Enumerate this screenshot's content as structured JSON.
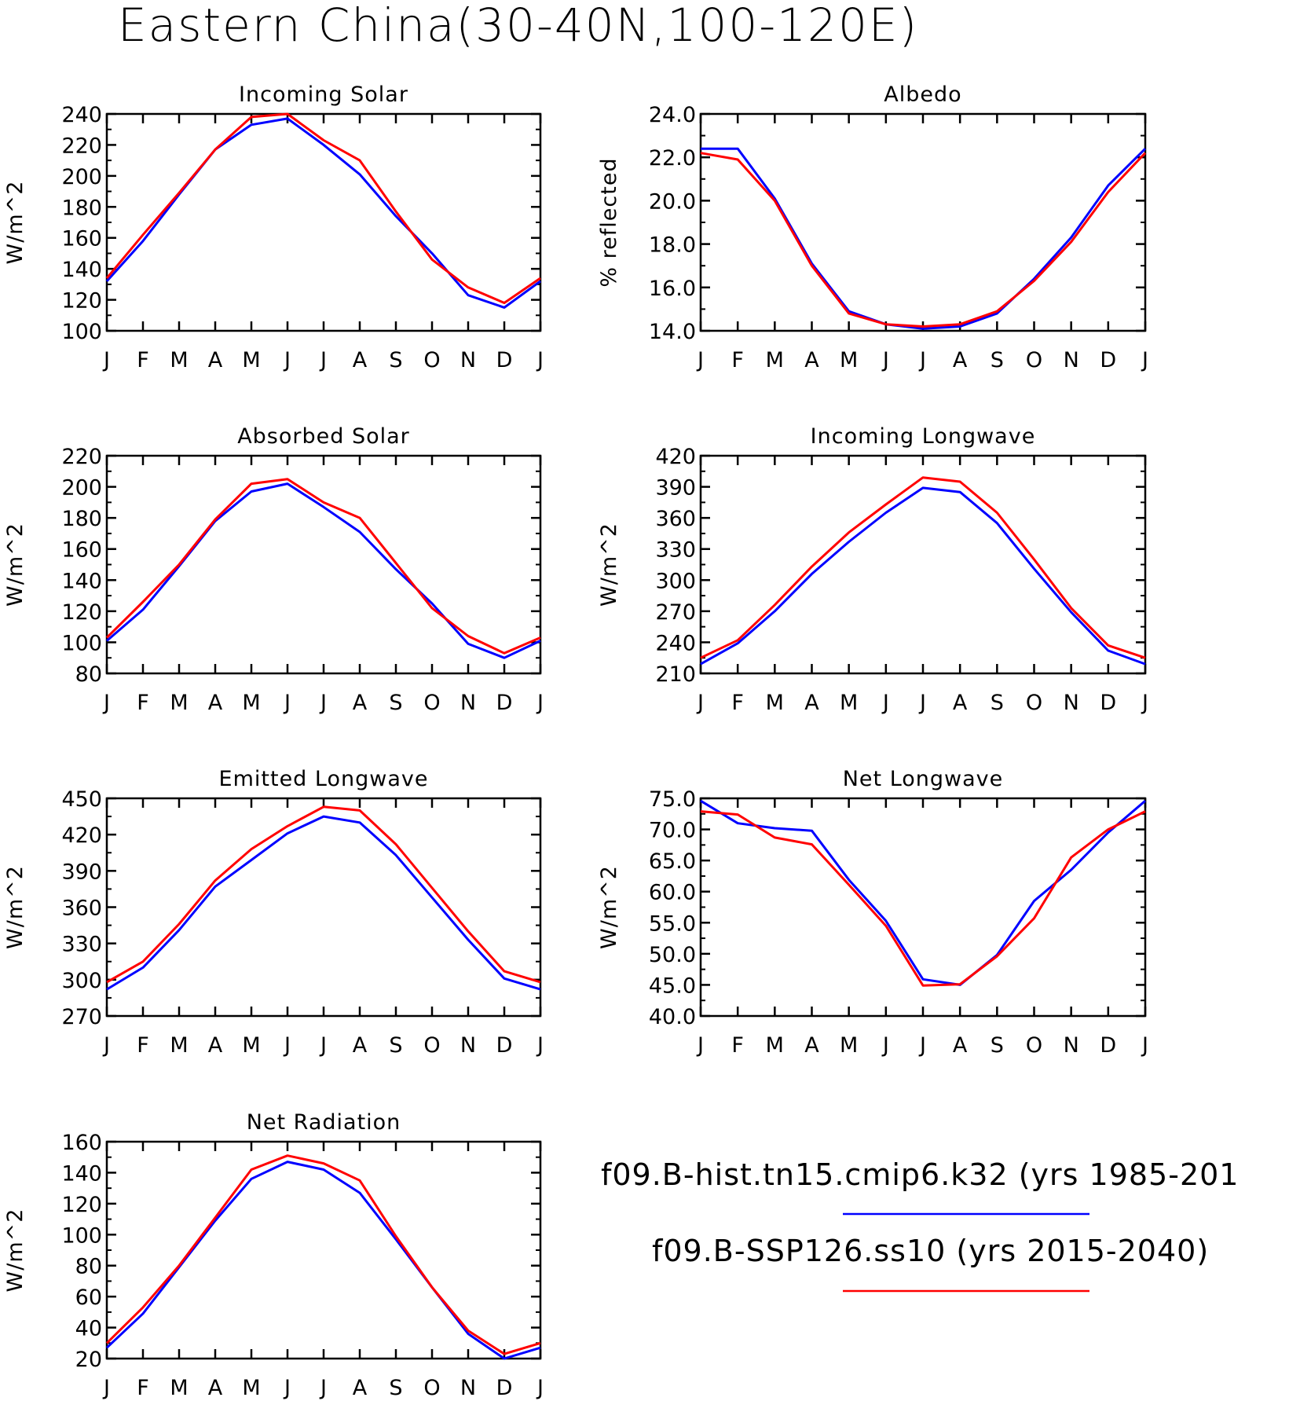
{
  "figure": {
    "title": "Eastern China(30-40N,100-120E)",
    "colors": {
      "hist": "#0000ff",
      "ssp": "#ff0000",
      "axis": "#000000"
    },
    "legend": [
      {
        "label": "f09.B-hist.tn15.cmip6.k32 (yrs 1985-201",
        "color": "#0000ff"
      },
      {
        "label": "f09.B-SSP126.ss10 (yrs 2015-2040)",
        "color": "#ff0000"
      }
    ]
  },
  "chart_data": [
    {
      "type": "line",
      "title": "Incoming Solar",
      "ylabel": "W/m^2",
      "x": [
        "J",
        "F",
        "M",
        "A",
        "M",
        "J",
        "J",
        "A",
        "S",
        "O",
        "N",
        "D",
        "J"
      ],
      "ylim": [
        100,
        240
      ],
      "yticks": [
        "100",
        "120",
        "140",
        "160",
        "180",
        "200",
        "220",
        "240"
      ],
      "series": [
        {
          "values": [
            132,
            158,
            188,
            217,
            233,
            237,
            220,
            201,
            174,
            150,
            123,
            115,
            132
          ]
        },
        {
          "values": [
            134,
            162,
            189,
            217,
            238,
            240,
            223,
            210,
            177,
            146,
            128,
            118,
            134
          ]
        }
      ]
    },
    {
      "type": "line",
      "title": "Albedo",
      "ylabel": "% reflected",
      "x": [
        "J",
        "F",
        "M",
        "A",
        "M",
        "J",
        "J",
        "A",
        "S",
        "O",
        "N",
        "D",
        "J"
      ],
      "ylim": [
        14.0,
        24.0
      ],
      "yticks": [
        "14.0",
        "16.0",
        "18.0",
        "20.0",
        "22.0",
        "24.0"
      ],
      "series": [
        {
          "values": [
            22.4,
            22.4,
            20.1,
            17.1,
            14.9,
            14.3,
            14.1,
            14.2,
            14.8,
            16.4,
            18.3,
            20.7,
            22.4
          ]
        },
        {
          "values": [
            22.2,
            21.9,
            20.0,
            17.0,
            14.8,
            14.3,
            14.2,
            14.3,
            14.9,
            16.3,
            18.1,
            20.4,
            22.2
          ]
        }
      ]
    },
    {
      "type": "line",
      "title": "Absorbed Solar",
      "ylabel": "W/m^2",
      "x": [
        "J",
        "F",
        "M",
        "A",
        "M",
        "J",
        "J",
        "A",
        "S",
        "O",
        "N",
        "D",
        "J"
      ],
      "ylim": [
        80,
        220
      ],
      "yticks": [
        "80",
        "100",
        "120",
        "140",
        "160",
        "180",
        "200",
        "220"
      ],
      "series": [
        {
          "values": [
            101,
            121,
            149,
            178,
            197,
            202,
            187,
            171,
            147,
            125,
            99,
            90,
            101
          ]
        },
        {
          "values": [
            103,
            126,
            150,
            179,
            202,
            205,
            190,
            180,
            151,
            122,
            104,
            93,
            103
          ]
        }
      ]
    },
    {
      "type": "line",
      "title": "Incoming Longwave",
      "ylabel": "W/m^2",
      "x": [
        "J",
        "F",
        "M",
        "A",
        "M",
        "J",
        "J",
        "A",
        "S",
        "O",
        "N",
        "D",
        "J"
      ],
      "ylim": [
        210,
        420
      ],
      "yticks": [
        "210",
        "240",
        "270",
        "300",
        "330",
        "360",
        "390",
        "420"
      ],
      "series": [
        {
          "values": [
            219,
            239,
            270,
            306,
            337,
            365,
            389,
            385,
            355,
            311,
            269,
            232,
            219
          ]
        },
        {
          "values": [
            225,
            242,
            276,
            313,
            346,
            373,
            399,
            395,
            365,
            320,
            273,
            237,
            225
          ]
        }
      ]
    },
    {
      "type": "line",
      "title": "Emitted Longwave",
      "ylabel": "W/m^2",
      "x": [
        "J",
        "F",
        "M",
        "A",
        "M",
        "J",
        "J",
        "A",
        "S",
        "O",
        "N",
        "D",
        "J"
      ],
      "ylim": [
        270,
        450
      ],
      "yticks": [
        "270",
        "300",
        "330",
        "360",
        "390",
        "420",
        "450"
      ],
      "series": [
        {
          "values": [
            292,
            310,
            341,
            377,
            399,
            421,
            435,
            430,
            403,
            368,
            333,
            301,
            292
          ]
        },
        {
          "values": [
            298,
            315,
            346,
            382,
            408,
            427,
            443,
            440,
            412,
            376,
            340,
            307,
            298
          ]
        }
      ]
    },
    {
      "type": "line",
      "title": "Net Longwave",
      "ylabel": "W/m^2",
      "x": [
        "J",
        "F",
        "M",
        "A",
        "M",
        "J",
        "J",
        "A",
        "S",
        "O",
        "N",
        "D",
        "J"
      ],
      "ylim": [
        40.0,
        75.0
      ],
      "yticks": [
        "40.0",
        "45.0",
        "50.0",
        "55.0",
        "60.0",
        "65.0",
        "70.0",
        "75.0"
      ],
      "series": [
        {
          "values": [
            74.6,
            71.0,
            70.2,
            69.8,
            61.9,
            55.3,
            45.9,
            45.0,
            49.8,
            58.5,
            63.5,
            69.5,
            74.6
          ]
        },
        {
          "values": [
            72.9,
            72.4,
            68.7,
            67.6,
            61.1,
            54.5,
            44.9,
            45.1,
            49.6,
            55.7,
            65.5,
            70.0,
            72.9
          ]
        }
      ]
    },
    {
      "type": "line",
      "title": "Net Radiation",
      "ylabel": "W/m^2",
      "x": [
        "J",
        "F",
        "M",
        "A",
        "M",
        "J",
        "J",
        "A",
        "S",
        "O",
        "N",
        "D",
        "J"
      ],
      "ylim": [
        20,
        160
      ],
      "yticks": [
        "20",
        "40",
        "60",
        "80",
        "100",
        "120",
        "140",
        "160"
      ],
      "series": [
        {
          "values": [
            27,
            49,
            79,
            109,
            136,
            147,
            142,
            127,
            97,
            66,
            36,
            20,
            27
          ]
        },
        {
          "values": [
            30,
            53,
            80,
            111,
            142,
            151,
            146,
            135,
            99,
            66,
            38,
            23,
            30
          ]
        }
      ]
    }
  ]
}
